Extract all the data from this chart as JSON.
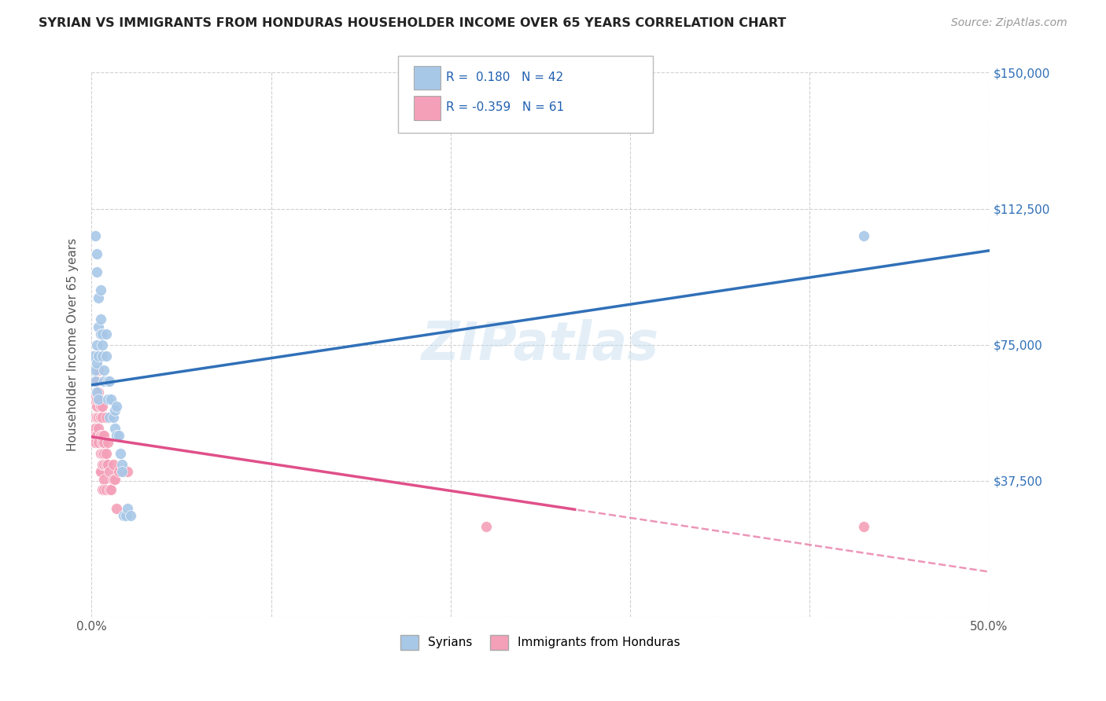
{
  "title": "SYRIAN VS IMMIGRANTS FROM HONDURAS HOUSEHOLDER INCOME OVER 65 YEARS CORRELATION CHART",
  "source": "Source: ZipAtlas.com",
  "ylabel": "Householder Income Over 65 years",
  "xlim": [
    0.0,
    0.5
  ],
  "ylim": [
    0,
    150000
  ],
  "yticks": [
    0,
    37500,
    75000,
    112500,
    150000
  ],
  "ytick_labels": [
    "",
    "$37,500",
    "$75,000",
    "$112,500",
    "$150,000"
  ],
  "xticks": [
    0.0,
    0.1,
    0.2,
    0.3,
    0.4,
    0.5
  ],
  "xtick_labels": [
    "0.0%",
    "",
    "",
    "",
    "",
    "50.0%"
  ],
  "background_color": "#ffffff",
  "grid_color": "#d0d0d0",
  "legend_R_syrian": "0.180",
  "legend_N_syrian": "42",
  "legend_R_honduras": "-0.359",
  "legend_N_honduras": "61",
  "syrian_color": "#a8c8e8",
  "honduras_color": "#f4a0b8",
  "syrian_line_color": "#3070b8",
  "honduras_line_color": "#e0508a",
  "syrian_scatter": [
    [
      0.001,
      72000
    ],
    [
      0.002,
      65000
    ],
    [
      0.002,
      68000
    ],
    [
      0.002,
      105000
    ],
    [
      0.003,
      70000
    ],
    [
      0.003,
      62000
    ],
    [
      0.003,
      75000
    ],
    [
      0.003,
      100000
    ],
    [
      0.003,
      95000
    ],
    [
      0.004,
      72000
    ],
    [
      0.004,
      88000
    ],
    [
      0.004,
      80000
    ],
    [
      0.004,
      60000
    ],
    [
      0.005,
      90000
    ],
    [
      0.005,
      78000
    ],
    [
      0.005,
      82000
    ],
    [
      0.006,
      78000
    ],
    [
      0.006,
      72000
    ],
    [
      0.006,
      75000
    ],
    [
      0.007,
      68000
    ],
    [
      0.007,
      65000
    ],
    [
      0.008,
      78000
    ],
    [
      0.008,
      72000
    ],
    [
      0.009,
      65000
    ],
    [
      0.009,
      60000
    ],
    [
      0.01,
      65000
    ],
    [
      0.01,
      55000
    ],
    [
      0.011,
      60000
    ],
    [
      0.012,
      55000
    ],
    [
      0.013,
      57000
    ],
    [
      0.013,
      52000
    ],
    [
      0.014,
      58000
    ],
    [
      0.014,
      50000
    ],
    [
      0.015,
      50000
    ],
    [
      0.016,
      45000
    ],
    [
      0.017,
      42000
    ],
    [
      0.017,
      40000
    ],
    [
      0.018,
      28000
    ],
    [
      0.019,
      28000
    ],
    [
      0.02,
      30000
    ],
    [
      0.022,
      28000
    ],
    [
      0.43,
      105000
    ]
  ],
  "honduras_scatter": [
    [
      0.001,
      60000
    ],
    [
      0.002,
      55000
    ],
    [
      0.002,
      52000
    ],
    [
      0.002,
      50000
    ],
    [
      0.002,
      48000
    ],
    [
      0.003,
      65000
    ],
    [
      0.003,
      60000
    ],
    [
      0.003,
      58000
    ],
    [
      0.003,
      65000
    ],
    [
      0.003,
      60000
    ],
    [
      0.003,
      55000
    ],
    [
      0.003,
      50000
    ],
    [
      0.004,
      72000
    ],
    [
      0.004,
      68000
    ],
    [
      0.004,
      62000
    ],
    [
      0.004,
      55000
    ],
    [
      0.004,
      60000
    ],
    [
      0.004,
      55000
    ],
    [
      0.004,
      52000
    ],
    [
      0.004,
      48000
    ],
    [
      0.005,
      58000
    ],
    [
      0.005,
      55000
    ],
    [
      0.005,
      50000
    ],
    [
      0.005,
      45000
    ],
    [
      0.005,
      40000
    ],
    [
      0.005,
      55000
    ],
    [
      0.005,
      50000
    ],
    [
      0.005,
      45000
    ],
    [
      0.005,
      40000
    ],
    [
      0.005,
      78000
    ],
    [
      0.006,
      58000
    ],
    [
      0.006,
      50000
    ],
    [
      0.006,
      45000
    ],
    [
      0.006,
      55000
    ],
    [
      0.006,
      48000
    ],
    [
      0.006,
      42000
    ],
    [
      0.006,
      35000
    ],
    [
      0.007,
      50000
    ],
    [
      0.007,
      45000
    ],
    [
      0.007,
      38000
    ],
    [
      0.007,
      48000
    ],
    [
      0.007,
      42000
    ],
    [
      0.007,
      35000
    ],
    [
      0.008,
      45000
    ],
    [
      0.008,
      55000
    ],
    [
      0.008,
      42000
    ],
    [
      0.008,
      35000
    ],
    [
      0.009,
      48000
    ],
    [
      0.009,
      42000
    ],
    [
      0.01,
      35000
    ],
    [
      0.01,
      40000
    ],
    [
      0.011,
      35000
    ],
    [
      0.012,
      38000
    ],
    [
      0.012,
      42000
    ],
    [
      0.013,
      38000
    ],
    [
      0.014,
      30000
    ],
    [
      0.015,
      40000
    ],
    [
      0.018,
      40000
    ],
    [
      0.02,
      40000
    ],
    [
      0.22,
      25000
    ],
    [
      0.43,
      25000
    ]
  ]
}
